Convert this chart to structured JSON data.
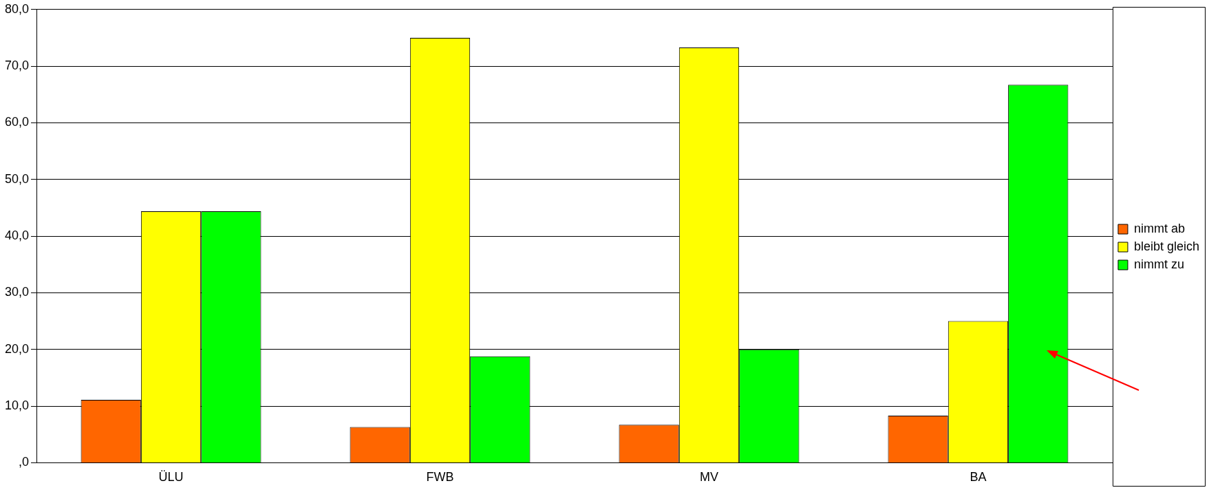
{
  "chart_data": {
    "type": "bar",
    "categories": [
      "ÜLU",
      "FWB",
      "MV",
      "BA"
    ],
    "series": [
      {
        "name": "nimmt ab",
        "color": "#ff6600",
        "values": [
          11.1,
          6.3,
          6.7,
          8.3
        ]
      },
      {
        "name": "bleibt gleich",
        "color": "#ffff00",
        "values": [
          44.4,
          75.0,
          73.3,
          25.0
        ]
      },
      {
        "name": "nimmt zu",
        "color": "#00ff00",
        "values": [
          44.4,
          18.8,
          20.0,
          66.7
        ]
      }
    ],
    "ylim": [
      0,
      80
    ],
    "yticks": [
      {
        "value": 0,
        "label": ",0"
      },
      {
        "value": 10,
        "label": "10,0"
      },
      {
        "value": 20,
        "label": "20,0"
      },
      {
        "value": 30,
        "label": "30,0"
      },
      {
        "value": 40,
        "label": "40,0"
      },
      {
        "value": 50,
        "label": "50,0"
      },
      {
        "value": 60,
        "label": "60,0"
      },
      {
        "value": 70,
        "label": "70,0"
      },
      {
        "value": 80,
        "label": "80,0"
      }
    ],
    "grid": "y",
    "legend": "right"
  }
}
